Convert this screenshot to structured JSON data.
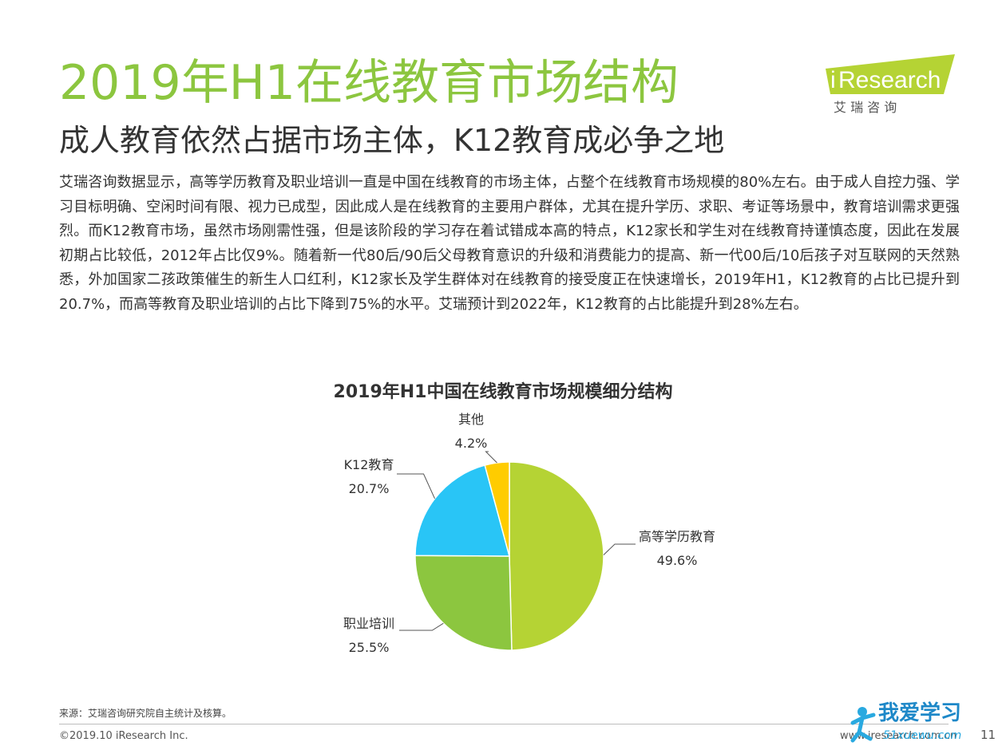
{
  "header": {
    "title": "2019年H1在线教育市场结构",
    "subtitle": "成人教育依然占据市场主体，K12教育成必争之地",
    "body": "艾瑞咨询数据显示，高等学历教育及职业培训一直是中国在线教育的市场主体，占整个在线教育市场规模的80%左右。由于成人自控力强、学习目标明确、空闲时间有限、视力已成型，因此成人是在线教育的主要用户群体，尤其在提升学历、求职、考证等场景中，教育培训需求更强烈。而K12教育市场，虽然市场刚需性强，但是该阶段的学习存在着试错成本高的特点，K12家长和学生对在线教育持谨慎态度，因此在发展初期占比较低，2012年占比仅9%。随着新一代80后/90后父母教育意识的升级和消费能力的提高、新一代00后/10后孩子对互联网的天然熟悉，外加国家二孩政策催生的新生人口红利，K12家长及学生群体对在线教育的接受度正在快速增长，2019年H1，K12教育的占比已提升到20.7%，而高等教育及职业培训的占比下降到75%的水平。艾瑞预计到2022年，K12教育的占比能提升到28%左右。"
  },
  "logo": {
    "brand_i": "i",
    "brand_rest": "Research",
    "chinese": "艾 瑞 咨 询",
    "color": "#b5d334"
  },
  "chart_data": {
    "type": "pie",
    "title": "2019年H1中国在线教育市场规模细分结构",
    "slices": [
      {
        "label": "高等学历教育",
        "value": 49.6,
        "value_label": "49.6%",
        "color": "#b5d334"
      },
      {
        "label": "职业培训",
        "value": 25.5,
        "value_label": "25.5%",
        "color": "#8cc63f"
      },
      {
        "label": "K12教育",
        "value": 20.7,
        "value_label": "20.7%",
        "color": "#29c5f6"
      },
      {
        "label": "其他",
        "value": 4.2,
        "value_label": "4.2%",
        "color": "#ffcc00"
      }
    ],
    "start": "12 o'clock, clockwise"
  },
  "footer": {
    "source": "来源：艾瑞咨询研究院自主统计及核算。",
    "copyright": "©2019.10 iResearch Inc.",
    "site": "www.iresearch.com.cn",
    "page": "11"
  },
  "watermark": {
    "text": "我爱学习",
    "sub": "51xuewu.com"
  }
}
